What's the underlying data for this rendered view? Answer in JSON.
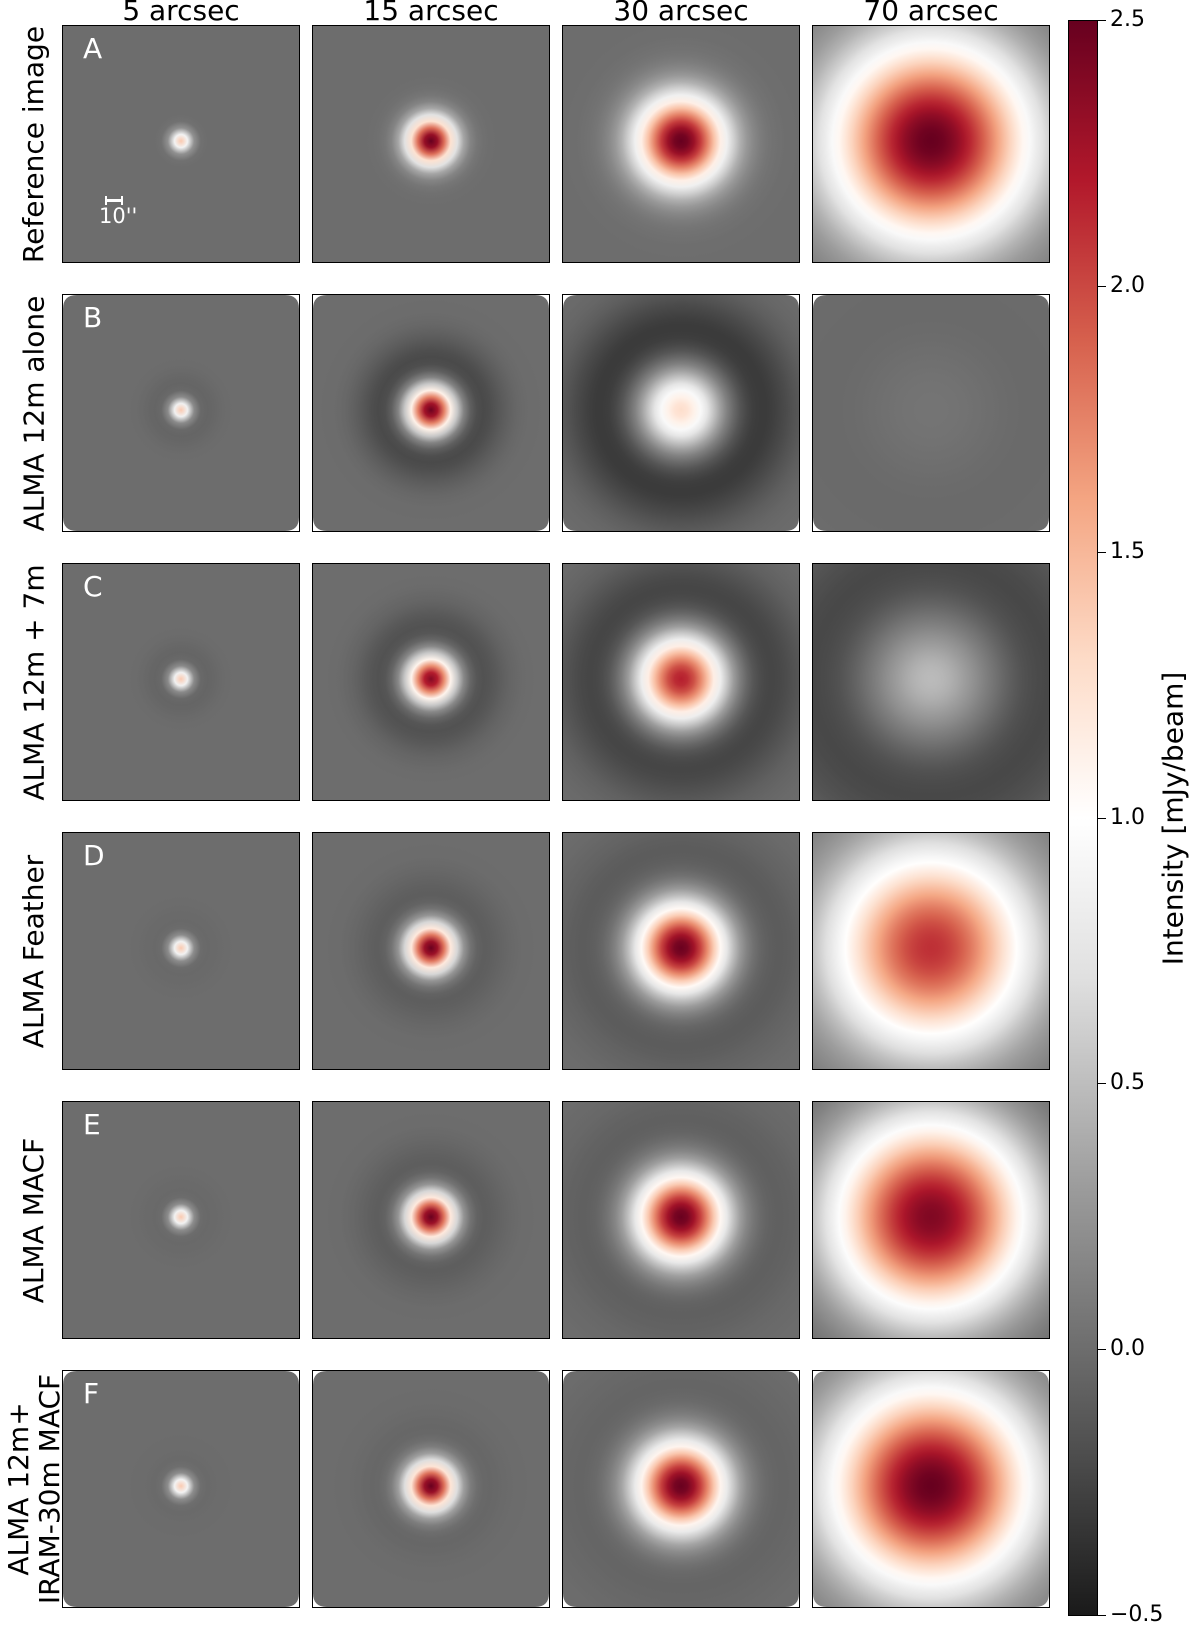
{
  "figure": {
    "columns": [
      "5 arcsec",
      "15 arcsec",
      "30 arcsec",
      "70 arcsec"
    ],
    "rows": [
      {
        "letter": "A",
        "label": "Reference image"
      },
      {
        "letter": "B",
        "label": "ALMA 12m alone"
      },
      {
        "letter": "C",
        "label": "ALMA 12m + 7m"
      },
      {
        "letter": "D",
        "label": "ALMA Feather"
      },
      {
        "letter": "E",
        "label": "ALMA MACF"
      },
      {
        "letter": "F",
        "label": "ALMA 12m+\nIRAM-30m MACF"
      }
    ],
    "scale_bar_label": "10''",
    "colorbar": {
      "label": "Intensity [mJy/beam]",
      "ticks": [
        "2.5",
        "2.0",
        "1.5",
        "1.0",
        "0.5",
        "0.0",
        "−0.5"
      ],
      "range": [
        -0.5,
        2.5
      ],
      "colormap": "RdGy_r",
      "stops": [
        [
          -0.5,
          "#1a1a1a"
        ],
        [
          -0.2,
          "#4d4d4d"
        ],
        [
          0.0,
          "#6d6d6d"
        ],
        [
          0.3,
          "#9b9b9b"
        ],
        [
          0.7,
          "#e0e0e0"
        ],
        [
          1.0,
          "#ffffff"
        ],
        [
          1.3,
          "#fddbc7"
        ],
        [
          1.6,
          "#f4a582"
        ],
        [
          1.9,
          "#d6604d"
        ],
        [
          2.2,
          "#b2182b"
        ],
        [
          2.5,
          "#67001f"
        ]
      ]
    }
  },
  "chart_data": {
    "type": "heatmap",
    "columns": [
      "5 arcsec",
      "15 arcsec",
      "30 arcsec",
      "70 arcsec"
    ],
    "rows": [
      "Reference image",
      "ALMA 12m alone",
      "ALMA 12m + 7m",
      "ALMA Feather",
      "ALMA MACF",
      "ALMA 12m+ IRAM-30m MACF"
    ],
    "source_fwhm_arcsec": [
      5,
      15,
      30,
      70
    ],
    "colorbar_label": "Intensity [mJy/beam]",
    "colorbar_range": [
      -0.5,
      2.5
    ],
    "panels": [
      [
        {
          "peak": 1.4,
          "width": 5,
          "ring": 0.0,
          "bg": 0.0
        },
        {
          "peak": 2.5,
          "width": 15,
          "ring": 0.0,
          "bg": 0.0
        },
        {
          "peak": 2.5,
          "width": 30,
          "ring": 0.0,
          "bg": 0.0
        },
        {
          "peak": 2.5,
          "width": 70,
          "ring": 0.0,
          "bg": 0.0
        }
      ],
      [
        {
          "peak": 1.4,
          "width": 5,
          "ring": -0.05,
          "bg": 0.0,
          "masked_corners": true
        },
        {
          "peak": 2.5,
          "width": 15,
          "ring": -0.25,
          "bg": 0.0,
          "masked_corners": true
        },
        {
          "peak": 1.3,
          "width": 28,
          "ring": -0.35,
          "bg": 0.0,
          "masked_corners": true
        },
        {
          "peak": 0.05,
          "width": 40,
          "ring": -0.02,
          "bg": 0.0,
          "masked_corners": true
        }
      ],
      [
        {
          "peak": 1.4,
          "width": 5,
          "ring": -0.05,
          "bg": 0.0
        },
        {
          "peak": 2.4,
          "width": 15,
          "ring": -0.2,
          "bg": 0.0
        },
        {
          "peak": 2.2,
          "width": 30,
          "ring": -0.3,
          "bg": 0.0
        },
        {
          "peak": 0.5,
          "width": 45,
          "ring": -0.25,
          "bg": 0.0
        }
      ],
      [
        {
          "peak": 1.4,
          "width": 5,
          "ring": -0.03,
          "bg": 0.0
        },
        {
          "peak": 2.5,
          "width": 15,
          "ring": -0.12,
          "bg": 0.0
        },
        {
          "peak": 2.5,
          "width": 30,
          "ring": -0.15,
          "bg": 0.0
        },
        {
          "peak": 2.1,
          "width": 70,
          "ring": 0.0,
          "bg": 0.0
        }
      ],
      [
        {
          "peak": 1.4,
          "width": 5,
          "ring": -0.03,
          "bg": 0.0
        },
        {
          "peak": 2.5,
          "width": 15,
          "ring": -0.12,
          "bg": 0.0
        },
        {
          "peak": 2.5,
          "width": 30,
          "ring": -0.12,
          "bg": 0.0
        },
        {
          "peak": 2.5,
          "width": 70,
          "ring": 0.0,
          "bg": -0.1
        }
      ],
      [
        {
          "peak": 1.4,
          "width": 5,
          "ring": -0.02,
          "bg": 0.0,
          "masked_corners": true
        },
        {
          "peak": 2.5,
          "width": 15,
          "ring": -0.05,
          "bg": 0.0,
          "masked_corners": true
        },
        {
          "peak": 2.5,
          "width": 30,
          "ring": -0.08,
          "bg": 0.0,
          "masked_corners": true
        },
        {
          "peak": 2.5,
          "width": 70,
          "ring": 0.0,
          "bg": 0.0,
          "masked_corners": true
        }
      ]
    ]
  }
}
